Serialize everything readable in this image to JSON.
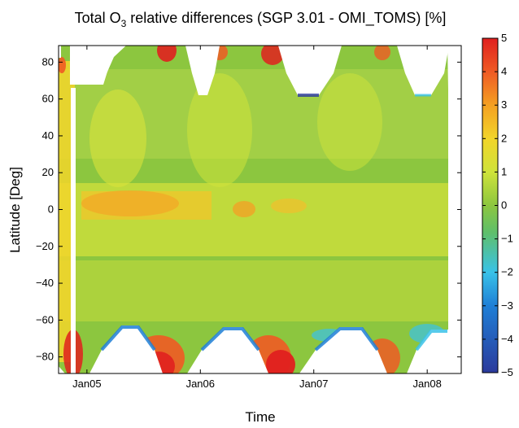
{
  "chart_data": {
    "type": "heatmap",
    "title": "Total O3 relative differences (SGP 3.01 - OMI_TOMS) [%]",
    "title_main": "Total O",
    "title_sub": "3",
    "title_rest": " relative differences (SGP 3.01 - OMI_TOMS) [%]",
    "xlabel": "Time",
    "ylabel": "Latitude [Deg]",
    "x_ticks": [
      "Jan05",
      "Jan06",
      "Jan07",
      "Jan08"
    ],
    "x_tick_years": [
      2005.0,
      2006.0,
      2007.0,
      2008.0
    ],
    "xlim_years": [
      2004.75,
      2008.3
    ],
    "y_ticks": [
      "80",
      "60",
      "40",
      "20",
      "0",
      "−20",
      "−40",
      "−60",
      "−80"
    ],
    "y_tick_values": [
      80,
      60,
      40,
      20,
      0,
      -20,
      -40,
      -60,
      -80
    ],
    "ylim": [
      -89,
      89
    ],
    "colorbar": {
      "ticks": [
        "5",
        "4",
        "3",
        "2",
        "1",
        "0",
        "−1",
        "−2",
        "−3",
        "−4",
        "−5"
      ],
      "tick_values": [
        5,
        4,
        3,
        2,
        1,
        0,
        -1,
        -2,
        -3,
        -4,
        -5
      ],
      "range": [
        -5,
        5
      ],
      "colormap": "jet-like (blue to red)"
    },
    "grid": false
  },
  "colors": {
    "background": "#ffffff",
    "axis": "#000000"
  }
}
